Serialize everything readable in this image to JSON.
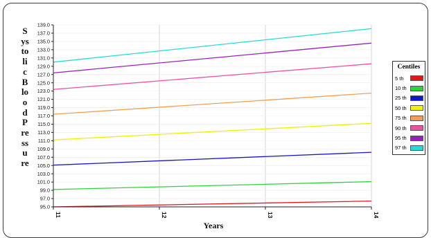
{
  "chart_data": {
    "type": "line",
    "title": "",
    "ylabel": "Systolic Blood Pressure",
    "xlabel": "Years",
    "x": [
      11,
      14
    ],
    "xlim": [
      11,
      14
    ],
    "ylim": [
      95.0,
      139.0
    ],
    "x_ticks": [
      "11",
      "12",
      "13",
      "14"
    ],
    "y_ticks": [
      "95.0",
      "97.0",
      "99.0",
      "101.0",
      "103.0",
      "105.0",
      "107.0",
      "109.0",
      "111.0",
      "113.0",
      "115.0",
      "117.0",
      "119.0",
      "121.0",
      "123.0",
      "125.0",
      "127.0",
      "129.0",
      "131.0",
      "133.0",
      "135.0",
      "137.0",
      "139.0"
    ],
    "grid": true,
    "legend": {
      "title": "Centiles",
      "placement": "right"
    },
    "series": [
      {
        "name": "5 th",
        "color": "#e8141c",
        "values": [
          95.0,
          96.4
        ]
      },
      {
        "name": "10 th",
        "color": "#2bd43a",
        "values": [
          99.2,
          101.1
        ]
      },
      {
        "name": "25 th",
        "color": "#1414c8",
        "values": [
          105.1,
          108.2
        ]
      },
      {
        "name": "50 th",
        "color": "#f2f200",
        "values": [
          111.2,
          115.2
        ]
      },
      {
        "name": "75 th",
        "color": "#f0a050",
        "values": [
          117.4,
          122.5
        ]
      },
      {
        "name": "90 th",
        "color": "#ee4fa8",
        "values": [
          123.4,
          129.6
        ]
      },
      {
        "name": "95 th",
        "color": "#9922bb",
        "values": [
          127.4,
          134.6
        ]
      },
      {
        "name": "97 th",
        "color": "#22dcdc",
        "values": [
          130.0,
          138.1
        ]
      }
    ]
  }
}
